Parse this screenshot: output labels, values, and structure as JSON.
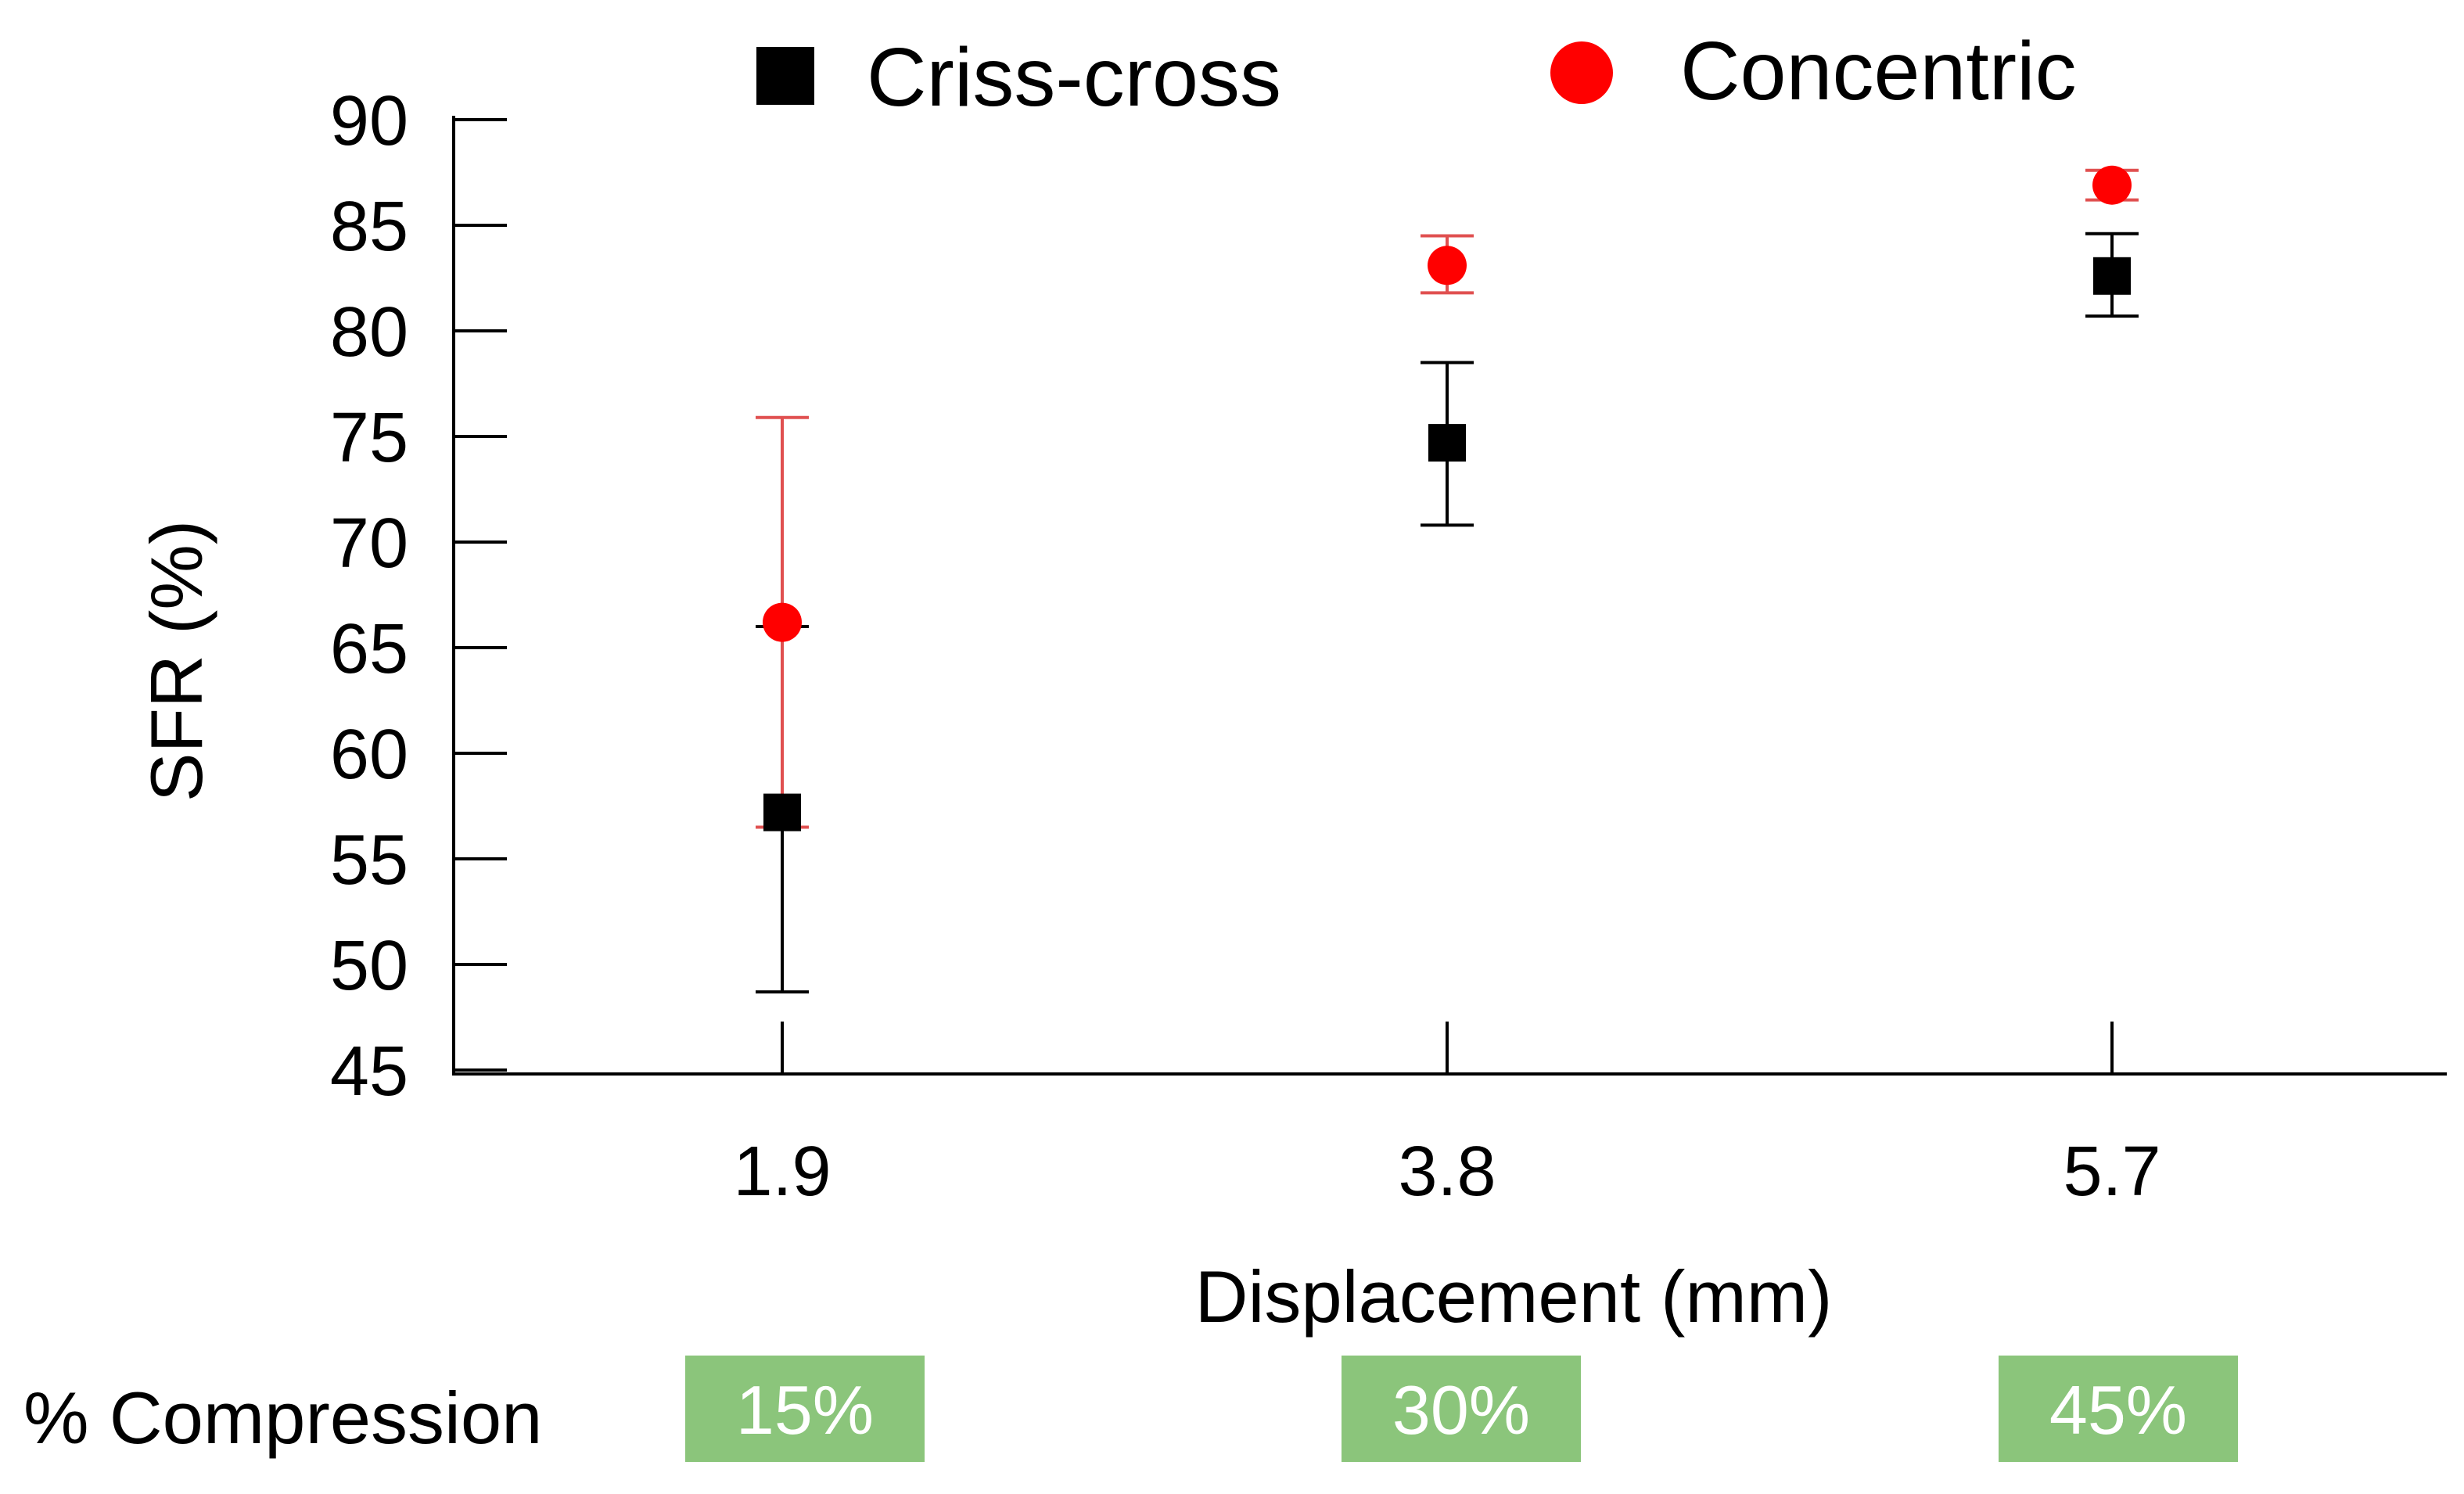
{
  "chart_data": {
    "type": "scatter",
    "title": "",
    "xlabel": "Displacement (mm)",
    "ylabel": "SFR (%)",
    "categories": [
      "1.9",
      "3.8",
      "5.7"
    ],
    "ylim": [
      45,
      90
    ],
    "yticks": [
      45,
      50,
      55,
      60,
      65,
      70,
      75,
      80,
      85,
      90
    ],
    "grid": false,
    "legend_position": "top",
    "series": [
      {
        "name": "Criss-cross",
        "marker": "square",
        "color": "#000000",
        "errorbar_color": "#000000",
        "values": [
          57.2,
          74.7,
          82.6
        ],
        "error_low": [
          48.7,
          70.8,
          80.7
        ],
        "error_high": [
          66.0,
          78.5,
          84.6
        ]
      },
      {
        "name": "Concentric",
        "marker": "circle",
        "color": "#ff0000",
        "errorbar_color": "#e05050",
        "values": [
          66.2,
          83.1,
          86.9
        ],
        "error_low": [
          56.5,
          81.8,
          86.2
        ],
        "error_high": [
          75.9,
          84.5,
          87.6
        ]
      }
    ]
  },
  "compression": {
    "label": "% Compression",
    "badge_color": "#8bc57b",
    "values": [
      "15%",
      "30%",
      "45%"
    ]
  }
}
